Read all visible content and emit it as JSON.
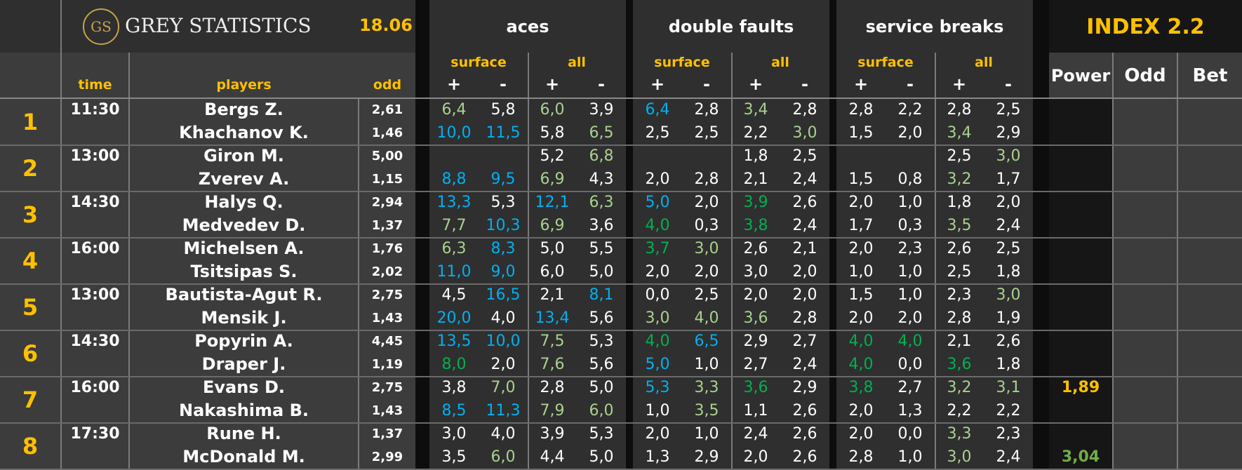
{
  "header": {
    "logo_mark": "GS",
    "brand": "GREY STATISTICS",
    "date": "18.06",
    "aces": "aces",
    "double_faults": "double faults",
    "service_breaks": "service breaks",
    "index": "INDEX 2.2",
    "time": "time",
    "players": "players",
    "odd": "odd",
    "surface": "surface",
    "all": "all",
    "plus": "+",
    "minus": "-",
    "power": "Power",
    "odd2": "Odd",
    "bet": "Bet"
  },
  "matches": [
    {
      "num": "1",
      "time": "11:30",
      "players": [
        "Bergs Z.",
        "Khachanov K."
      ],
      "odds": [
        "2,61",
        "1,46"
      ],
      "stats": [
        [
          [
            "6,4",
            "lgr"
          ],
          [
            "5,8",
            "wht"
          ],
          [
            "6,0",
            "lgr"
          ],
          [
            "3,9",
            "wht"
          ],
          [
            "6,4",
            "blu"
          ],
          [
            "2,8",
            "wht"
          ],
          [
            "3,4",
            "lgr"
          ],
          [
            "2,8",
            "wht"
          ],
          [
            "2,8",
            "wht"
          ],
          [
            "2,2",
            "wht"
          ],
          [
            "2,8",
            "wht"
          ],
          [
            "2,5",
            "wht"
          ]
        ],
        [
          [
            "10,0",
            "blu"
          ],
          [
            "11,5",
            "blu"
          ],
          [
            "5,8",
            "wht"
          ],
          [
            "6,5",
            "lgr"
          ],
          [
            "2,5",
            "wht"
          ],
          [
            "2,5",
            "wht"
          ],
          [
            "2,2",
            "wht"
          ],
          [
            "3,0",
            "lgr"
          ],
          [
            "1,5",
            "wht"
          ],
          [
            "2,0",
            "wht"
          ],
          [
            "3,4",
            "lgr"
          ],
          [
            "2,9",
            "wht"
          ]
        ]
      ],
      "power": ""
    },
    {
      "num": "2",
      "time": "13:00",
      "players": [
        "Giron M.",
        "Zverev A."
      ],
      "odds": [
        "5,00",
        "1,15"
      ],
      "stats": [
        [
          [
            "",
            ""
          ],
          [
            "",
            ""
          ],
          [
            "5,2",
            "wht"
          ],
          [
            "6,8",
            "lgr"
          ],
          [
            "",
            ""
          ],
          [
            "",
            ""
          ],
          [
            "1,8",
            "wht"
          ],
          [
            "2,5",
            "wht"
          ],
          [
            "",
            ""
          ],
          [
            "",
            ""
          ],
          [
            "2,5",
            "wht"
          ],
          [
            "3,0",
            "lgr"
          ]
        ],
        [
          [
            "8,8",
            "blu"
          ],
          [
            "9,5",
            "blu"
          ],
          [
            "6,9",
            "lgr"
          ],
          [
            "4,3",
            "wht"
          ],
          [
            "2,0",
            "wht"
          ],
          [
            "2,8",
            "wht"
          ],
          [
            "2,1",
            "wht"
          ],
          [
            "2,4",
            "wht"
          ],
          [
            "1,5",
            "wht"
          ],
          [
            "0,8",
            "wht"
          ],
          [
            "3,2",
            "lgr"
          ],
          [
            "1,7",
            "wht"
          ]
        ]
      ],
      "power": ""
    },
    {
      "num": "3",
      "time": "14:30",
      "players": [
        "Halys Q.",
        "Medvedev D."
      ],
      "odds": [
        "2,94",
        "1,37"
      ],
      "stats": [
        [
          [
            "13,3",
            "blu"
          ],
          [
            "5,3",
            "wht"
          ],
          [
            "12,1",
            "blu"
          ],
          [
            "6,3",
            "lgr"
          ],
          [
            "5,0",
            "blu"
          ],
          [
            "2,0",
            "wht"
          ],
          [
            "3,9",
            "dgr"
          ],
          [
            "2,6",
            "wht"
          ],
          [
            "2,0",
            "wht"
          ],
          [
            "1,0",
            "wht"
          ],
          [
            "1,8",
            "wht"
          ],
          [
            "2,0",
            "wht"
          ]
        ],
        [
          [
            "7,7",
            "lgr"
          ],
          [
            "10,3",
            "blu"
          ],
          [
            "6,9",
            "lgr"
          ],
          [
            "3,6",
            "wht"
          ],
          [
            "4,0",
            "dgr"
          ],
          [
            "0,3",
            "wht"
          ],
          [
            "3,8",
            "dgr"
          ],
          [
            "2,4",
            "wht"
          ],
          [
            "1,7",
            "wht"
          ],
          [
            "0,3",
            "wht"
          ],
          [
            "3,5",
            "lgr"
          ],
          [
            "2,4",
            "wht"
          ]
        ]
      ],
      "power": ""
    },
    {
      "num": "4",
      "time": "16:00",
      "players": [
        "Michelsen A.",
        "Tsitsipas S."
      ],
      "odds": [
        "1,76",
        "2,02"
      ],
      "stats": [
        [
          [
            "6,3",
            "lgr"
          ],
          [
            "8,3",
            "blu"
          ],
          [
            "5,0",
            "wht"
          ],
          [
            "5,5",
            "wht"
          ],
          [
            "3,7",
            "dgr"
          ],
          [
            "3,0",
            "lgr"
          ],
          [
            "2,6",
            "wht"
          ],
          [
            "2,1",
            "wht"
          ],
          [
            "2,0",
            "wht"
          ],
          [
            "2,3",
            "wht"
          ],
          [
            "2,6",
            "wht"
          ],
          [
            "2,5",
            "wht"
          ]
        ],
        [
          [
            "11,0",
            "blu"
          ],
          [
            "9,0",
            "blu"
          ],
          [
            "6,0",
            "wht"
          ],
          [
            "5,0",
            "wht"
          ],
          [
            "2,0",
            "wht"
          ],
          [
            "2,0",
            "wht"
          ],
          [
            "3,0",
            "wht"
          ],
          [
            "2,0",
            "wht"
          ],
          [
            "1,0",
            "wht"
          ],
          [
            "1,0",
            "wht"
          ],
          [
            "2,5",
            "wht"
          ],
          [
            "1,8",
            "wht"
          ]
        ]
      ],
      "power": ""
    },
    {
      "num": "5",
      "time": "13:00",
      "players": [
        "Bautista-Agut R.",
        "Mensik J."
      ],
      "odds": [
        "2,75",
        "1,43"
      ],
      "stats": [
        [
          [
            "4,5",
            "wht"
          ],
          [
            "16,5",
            "blu"
          ],
          [
            "2,1",
            "wht"
          ],
          [
            "8,1",
            "blu"
          ],
          [
            "0,0",
            "wht"
          ],
          [
            "2,5",
            "wht"
          ],
          [
            "2,0",
            "wht"
          ],
          [
            "2,0",
            "wht"
          ],
          [
            "1,5",
            "wht"
          ],
          [
            "1,0",
            "wht"
          ],
          [
            "2,3",
            "wht"
          ],
          [
            "3,0",
            "lgr"
          ]
        ],
        [
          [
            "20,0",
            "blu"
          ],
          [
            "4,0",
            "wht"
          ],
          [
            "13,4",
            "blu"
          ],
          [
            "5,6",
            "wht"
          ],
          [
            "3,0",
            "lgr"
          ],
          [
            "4,0",
            "lgr"
          ],
          [
            "3,6",
            "lgr"
          ],
          [
            "2,8",
            "wht"
          ],
          [
            "2,0",
            "wht"
          ],
          [
            "2,0",
            "wht"
          ],
          [
            "2,8",
            "wht"
          ],
          [
            "1,9",
            "wht"
          ]
        ]
      ],
      "power": ""
    },
    {
      "num": "6",
      "time": "14:30",
      "players": [
        "Popyrin A.",
        "Draper J."
      ],
      "odds": [
        "4,45",
        "1,19"
      ],
      "stats": [
        [
          [
            "13,5",
            "blu"
          ],
          [
            "10,0",
            "blu"
          ],
          [
            "7,5",
            "lgr"
          ],
          [
            "5,3",
            "wht"
          ],
          [
            "4,0",
            "dgr"
          ],
          [
            "6,5",
            "blu"
          ],
          [
            "2,9",
            "wht"
          ],
          [
            "2,7",
            "wht"
          ],
          [
            "4,0",
            "dgr"
          ],
          [
            "4,0",
            "dgr"
          ],
          [
            "2,1",
            "wht"
          ],
          [
            "2,6",
            "wht"
          ]
        ],
        [
          [
            "8,0",
            "dgr"
          ],
          [
            "2,0",
            "wht"
          ],
          [
            "7,6",
            "lgr"
          ],
          [
            "5,6",
            "wht"
          ],
          [
            "5,0",
            "blu"
          ],
          [
            "1,0",
            "wht"
          ],
          [
            "2,7",
            "wht"
          ],
          [
            "2,4",
            "wht"
          ],
          [
            "4,0",
            "dgr"
          ],
          [
            "0,0",
            "wht"
          ],
          [
            "3,6",
            "dgr"
          ],
          [
            "1,8",
            "wht"
          ]
        ]
      ],
      "power": ""
    },
    {
      "num": "7",
      "time": "16:00",
      "players": [
        "Evans D.",
        "Nakashima B."
      ],
      "odds": [
        "2,75",
        "1,43"
      ],
      "stats": [
        [
          [
            "3,8",
            "wht"
          ],
          [
            "7,0",
            "lgr"
          ],
          [
            "2,8",
            "wht"
          ],
          [
            "5,0",
            "wht"
          ],
          [
            "5,3",
            "blu"
          ],
          [
            "3,3",
            "lgr"
          ],
          [
            "3,6",
            "dgr"
          ],
          [
            "2,9",
            "wht"
          ],
          [
            "3,8",
            "dgr"
          ],
          [
            "2,7",
            "wht"
          ],
          [
            "3,2",
            "lgr"
          ],
          [
            "3,1",
            "lgr"
          ]
        ],
        [
          [
            "8,5",
            "blu"
          ],
          [
            "11,3",
            "blu"
          ],
          [
            "7,9",
            "lgr"
          ],
          [
            "6,0",
            "lgr"
          ],
          [
            "1,0",
            "wht"
          ],
          [
            "3,5",
            "lgr"
          ],
          [
            "1,1",
            "wht"
          ],
          [
            "2,6",
            "wht"
          ],
          [
            "2,0",
            "wht"
          ],
          [
            "1,3",
            "wht"
          ],
          [
            "2,2",
            "wht"
          ],
          [
            "2,2",
            "wht"
          ]
        ]
      ],
      "power": "1,89",
      "power_row": 0,
      "power_color": "yel"
    },
    {
      "num": "8",
      "time": "17:30",
      "players": [
        "Rune H.",
        "McDonald M."
      ],
      "odds": [
        "1,37",
        "2,99"
      ],
      "stats": [
        [
          [
            "3,0",
            "wht"
          ],
          [
            "4,0",
            "wht"
          ],
          [
            "3,9",
            "wht"
          ],
          [
            "5,3",
            "wht"
          ],
          [
            "2,0",
            "wht"
          ],
          [
            "1,0",
            "wht"
          ],
          [
            "2,4",
            "wht"
          ],
          [
            "2,6",
            "wht"
          ],
          [
            "2,0",
            "wht"
          ],
          [
            "0,0",
            "wht"
          ],
          [
            "3,3",
            "lgr"
          ],
          [
            "2,3",
            "wht"
          ]
        ],
        [
          [
            "3,5",
            "wht"
          ],
          [
            "6,0",
            "lgr"
          ],
          [
            "4,4",
            "wht"
          ],
          [
            "5,0",
            "wht"
          ],
          [
            "1,3",
            "wht"
          ],
          [
            "2,9",
            "wht"
          ],
          [
            "2,0",
            "wht"
          ],
          [
            "2,6",
            "wht"
          ],
          [
            "2,8",
            "wht"
          ],
          [
            "1,0",
            "wht"
          ],
          [
            "3,0",
            "lgr"
          ],
          [
            "2,4",
            "wht"
          ]
        ]
      ],
      "power": "3,04",
      "power_row": 1,
      "power_color": "grn"
    }
  ]
}
